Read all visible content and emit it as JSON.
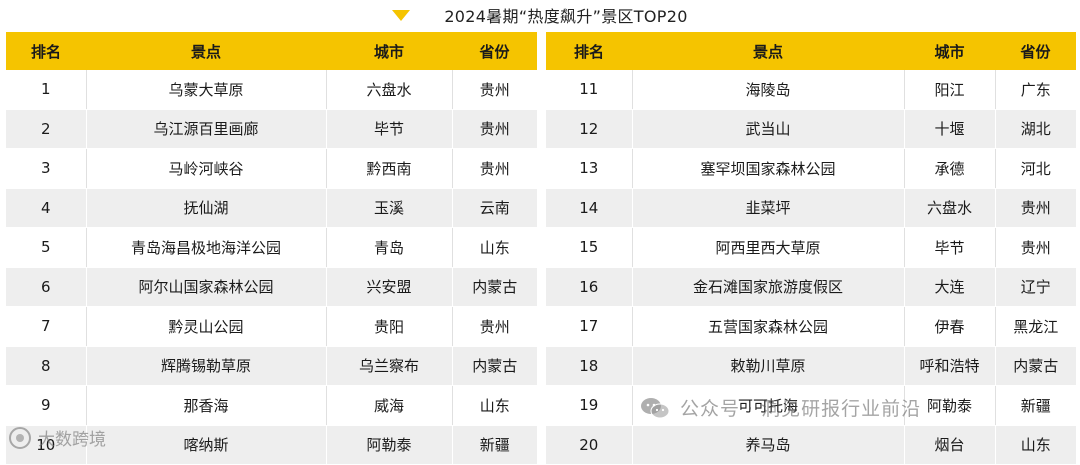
{
  "title": "2024暑期“热度飙升”景区TOP20",
  "accent_color": "#f5c400",
  "columns": [
    "排名",
    "景点",
    "城市",
    "省份"
  ],
  "left_rows": [
    {
      "rank": "1",
      "spot": "乌蒙大草原",
      "city": "六盘水",
      "province": "贵州"
    },
    {
      "rank": "2",
      "spot": "乌江源百里画廊",
      "city": "毕节",
      "province": "贵州"
    },
    {
      "rank": "3",
      "spot": "马岭河峡谷",
      "city": "黔西南",
      "province": "贵州"
    },
    {
      "rank": "4",
      "spot": "抚仙湖",
      "city": "玉溪",
      "province": "云南"
    },
    {
      "rank": "5",
      "spot": "青岛海昌极地海洋公园",
      "city": "青岛",
      "province": "山东"
    },
    {
      "rank": "6",
      "spot": "阿尔山国家森林公园",
      "city": "兴安盟",
      "province": "内蒙古"
    },
    {
      "rank": "7",
      "spot": "黔灵山公园",
      "city": "贵阳",
      "province": "贵州"
    },
    {
      "rank": "8",
      "spot": "辉腾锡勒草原",
      "city": "乌兰察布",
      "province": "内蒙古"
    },
    {
      "rank": "9",
      "spot": "那香海",
      "city": "威海",
      "province": "山东"
    },
    {
      "rank": "10",
      "spot": "喀纳斯",
      "city": "阿勒泰",
      "province": "新疆"
    }
  ],
  "right_rows": [
    {
      "rank": "11",
      "spot": "海陵岛",
      "city": "阳江",
      "province": "广东"
    },
    {
      "rank": "12",
      "spot": "武当山",
      "city": "十堰",
      "province": "湖北"
    },
    {
      "rank": "13",
      "spot": "塞罕坝国家森林公园",
      "city": "承德",
      "province": "河北"
    },
    {
      "rank": "14",
      "spot": "韭菜坪",
      "city": "六盘水",
      "province": "贵州"
    },
    {
      "rank": "15",
      "spot": "阿西里西大草原",
      "city": "毕节",
      "province": "贵州"
    },
    {
      "rank": "16",
      "spot": "金石滩国家旅游度假区",
      "city": "大连",
      "province": "辽宁"
    },
    {
      "rank": "17",
      "spot": "五营国家森林公园",
      "city": "伊春",
      "province": "黑龙江"
    },
    {
      "rank": "18",
      "spot": "敕勒川草原",
      "city": "呼和浩特",
      "province": "内蒙古"
    },
    {
      "rank": "19",
      "spot": "可可托海",
      "city": "阿勒泰",
      "province": "新疆"
    },
    {
      "rank": "20",
      "spot": "养马岛",
      "city": "烟台",
      "province": "山东"
    }
  ],
  "watermarks": {
    "right_text": "公众号 · 洞见研报行业前沿",
    "left_text": "大数跨境",
    "right_icon": "wechat-icon",
    "left_icon": "brand-logo-icon"
  }
}
